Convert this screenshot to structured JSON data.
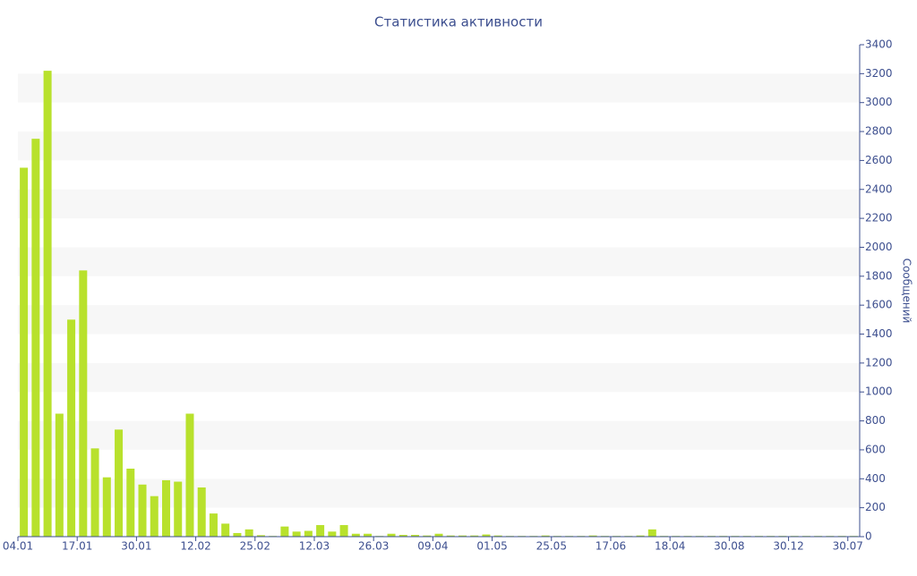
{
  "chart_data": {
    "type": "bar",
    "title": "Статистика активности",
    "y_label": "Сообщений",
    "categories": [
      "04.01",
      null,
      null,
      null,
      null,
      "17.01",
      null,
      null,
      null,
      null,
      "30.01",
      null,
      null,
      null,
      null,
      "12.02",
      null,
      null,
      null,
      null,
      "25.02",
      null,
      null,
      null,
      null,
      "12.03",
      null,
      null,
      null,
      null,
      "26.03",
      null,
      null,
      null,
      null,
      "09.04",
      null,
      null,
      null,
      null,
      "01.05",
      null,
      null,
      null,
      null,
      "25.05",
      null,
      null,
      null,
      null,
      "17.06",
      null,
      null,
      null,
      null,
      "18.04",
      null,
      null,
      null,
      null,
      "30.08",
      null,
      null,
      null,
      null,
      "30.12",
      null,
      null,
      null,
      null,
      "30.07"
    ],
    "values": [
      2550,
      2750,
      3220,
      850,
      1500,
      1840,
      610,
      410,
      740,
      470,
      360,
      280,
      390,
      380,
      850,
      340,
      160,
      90,
      25,
      50,
      10,
      5,
      70,
      35,
      40,
      80,
      35,
      80,
      20,
      20,
      5,
      20,
      12,
      12,
      8,
      20,
      8,
      8,
      8,
      15,
      8,
      5,
      5,
      5,
      8,
      5,
      5,
      5,
      8,
      5,
      5,
      5,
      8,
      50,
      5,
      5,
      5,
      5,
      5,
      5,
      5,
      5,
      5,
      5,
      5,
      5,
      5,
      5,
      5,
      5,
      5
    ],
    "color": "#b8e12c",
    "ylim": [
      0,
      3400
    ],
    "yticks": [
      0,
      200,
      400,
      600,
      800,
      1000,
      1200,
      1400,
      1600,
      1800,
      2000,
      2200,
      2400,
      2600,
      2800,
      3000,
      3200,
      3400
    ],
    "grid": "bands",
    "y_axis_side": "right"
  }
}
